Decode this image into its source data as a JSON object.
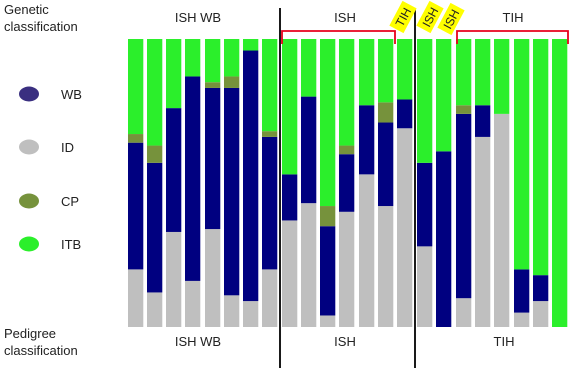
{
  "chart_data": {
    "type": "bar",
    "stacked": true,
    "orientation": "vertical",
    "y_unit": "fraction",
    "ylim": [
      0,
      1
    ],
    "row_labels": {
      "top": "Genetic\nclassification",
      "bottom": "Pedigree\nclassification"
    },
    "top_labels": [
      "ISH  WB",
      "ISH",
      "TIH"
    ],
    "top_tags": [
      "TIH",
      "ISH",
      "ISH"
    ],
    "bottom_labels": [
      "ISH  WB",
      "ISH",
      "TIH"
    ],
    "legend": [
      {
        "name": "WB",
        "color": "#3a2f80"
      },
      {
        "name": "ID",
        "color": "#bfbfbf"
      },
      {
        "name": "CP",
        "color": "#76923c"
      },
      {
        "name": "ITB",
        "color": "#2bef2b"
      }
    ],
    "colors": {
      "WB": "#000080",
      "ID": "#bfbfbf",
      "CP": "#76923c",
      "ITB": "#2bef2b",
      "bracket": "#e8001c",
      "tag": "#ffff00"
    },
    "series": [
      {
        "name": "ID",
        "values": [
          0.2,
          0.12,
          0.33,
          0.16,
          0.34,
          0.11,
          0.09,
          0.2,
          0.37,
          0.43,
          0.04,
          0.4,
          0.53,
          0.42,
          0.69,
          0.28,
          0.0,
          0.1,
          0.66,
          0.74,
          0.05,
          0.09,
          0.0
        ]
      },
      {
        "name": "WB",
        "values": [
          0.44,
          0.45,
          0.43,
          0.71,
          0.49,
          0.72,
          0.87,
          0.46,
          0.16,
          0.37,
          0.31,
          0.2,
          0.24,
          0.29,
          0.1,
          0.29,
          0.61,
          0.64,
          0.11,
          0.0,
          0.15,
          0.09,
          0.0
        ]
      },
      {
        "name": "CP",
        "values": [
          0.03,
          0.06,
          0.0,
          0.0,
          0.02,
          0.04,
          0.0,
          0.02,
          0.0,
          0.0,
          0.07,
          0.03,
          0.0,
          0.07,
          0.0,
          0.0,
          0.0,
          0.03,
          0.0,
          0.0,
          0.0,
          0.0,
          0.0
        ]
      },
      {
        "name": "ITB",
        "values": [
          0.33,
          0.37,
          0.24,
          0.13,
          0.15,
          0.13,
          0.04,
          0.32,
          0.47,
          0.2,
          0.58,
          0.37,
          0.23,
          0.22,
          0.21,
          0.43,
          0.39,
          0.23,
          0.23,
          0.26,
          0.8,
          0.82,
          1.0
        ]
      }
    ],
    "groups": [
      {
        "label": "ISH  WB",
        "bars": 8
      },
      {
        "label": "ISH",
        "bars": 7
      },
      {
        "label": "TIH",
        "bars": 8
      }
    ]
  }
}
